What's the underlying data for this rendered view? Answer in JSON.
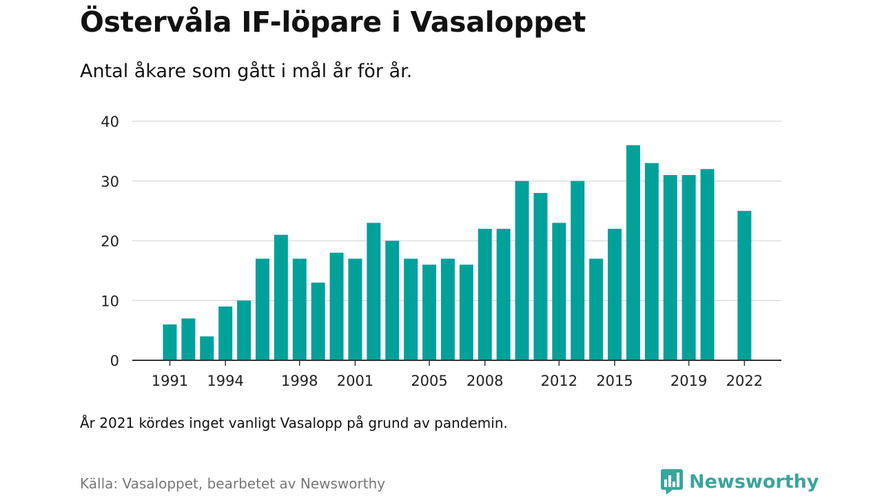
{
  "header": {
    "title": "Östervåla IF-löpare i Vasaloppet",
    "subtitle": "Antal åkare som gått i mål år för år."
  },
  "footer": {
    "note": "År 2021 kördes inget vanligt Vasalopp på grund av pandemin.",
    "source": "Källa: Vasaloppet, bearbetet av Newsworthy",
    "logo_text": "Newsworthy",
    "logo_icon": "newsworthy-bar-chart-logo-icon"
  },
  "colors": {
    "bar": "#00a19a",
    "grid": "#dddddd",
    "axis": "#333333",
    "logo": "#3aa59b"
  },
  "chart_data": {
    "type": "bar",
    "title": "Östervåla IF-löpare i Vasaloppet",
    "subtitle": "Antal åkare som gått i mål år för år.",
    "xlabel": "",
    "ylabel": "",
    "ylim": [
      0,
      40
    ],
    "y_ticks": [
      0,
      10,
      20,
      30,
      40
    ],
    "x_tick_labels": [
      "1991",
      "1994",
      "1998",
      "2001",
      "2005",
      "2008",
      "2012",
      "2015",
      "2019",
      "2022"
    ],
    "grid": true,
    "legend": "none",
    "categories": [
      "1991",
      "1992",
      "1993",
      "1994",
      "1995",
      "1996",
      "1997",
      "1998",
      "1999",
      "2000",
      "2001",
      "2002",
      "2003",
      "2004",
      "2005",
      "2006",
      "2007",
      "2008",
      "2009",
      "2010",
      "2011",
      "2012",
      "2013",
      "2014",
      "2015",
      "2016",
      "2017",
      "2018",
      "2019",
      "2020",
      "2021",
      "2022"
    ],
    "values": [
      6,
      7,
      4,
      9,
      10,
      17,
      21,
      17,
      13,
      18,
      17,
      23,
      20,
      17,
      16,
      17,
      16,
      22,
      22,
      30,
      28,
      23,
      30,
      17,
      22,
      36,
      33,
      31,
      31,
      32,
      null,
      25
    ]
  }
}
